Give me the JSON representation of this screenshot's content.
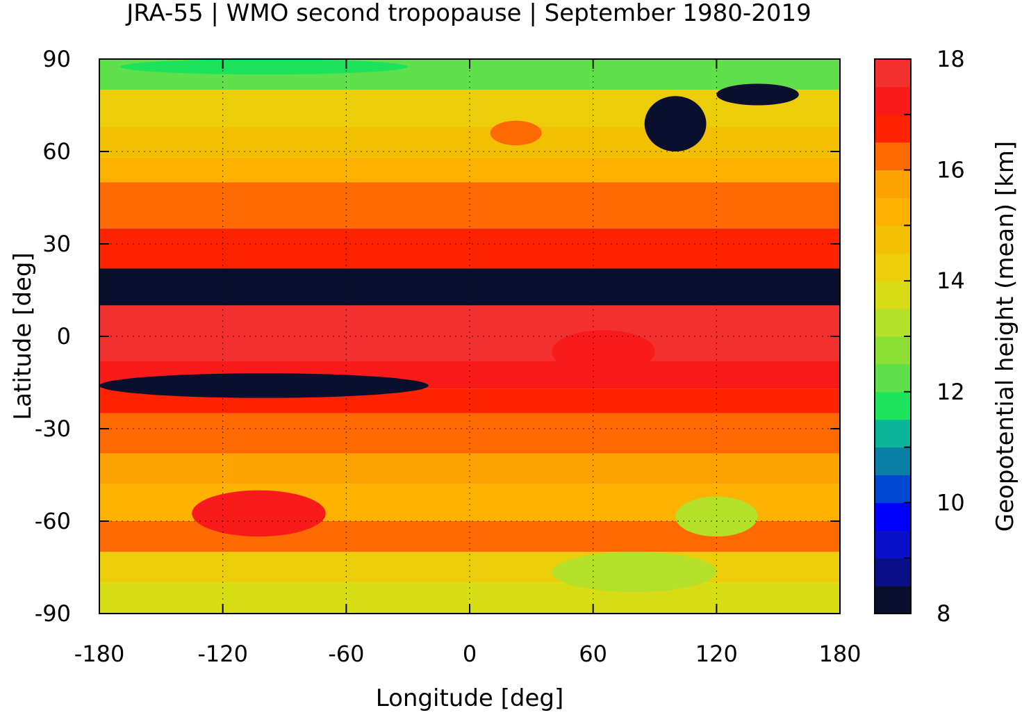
{
  "chart_data": {
    "type": "heatmap",
    "title": "JRA-55 | WMO second tropopause | September 1980-2019",
    "xlabel": "Longitude [deg]",
    "ylabel": "Latitude [deg]",
    "xlim": [
      -180,
      180
    ],
    "ylim": [
      -90,
      90
    ],
    "xticks": [
      -180,
      -120,
      -60,
      0,
      60,
      120,
      180
    ],
    "yticks": [
      90,
      60,
      30,
      0,
      -30,
      -60,
      -90
    ],
    "grid": true,
    "colorbar": {
      "label": "Geopotential height (mean) [km]",
      "range": [
        8,
        18
      ],
      "ticks": [
        18,
        16,
        14,
        12,
        10,
        8
      ],
      "step": 0.5,
      "colors": [
        "#0b0f2e",
        "#0a0f88",
        "#0a10c8",
        "#0000ff",
        "#0047d2",
        "#0a7fa6",
        "#0ab59a",
        "#1ce35b",
        "#5fe04a",
        "#8ce035",
        "#b5e02a",
        "#d8dc14",
        "#eccd0a",
        "#f3bf02",
        "#fdb100",
        "#fda203",
        "#fd6a03",
        "#fd2200",
        "#f91a1a",
        "#f23030",
        "#f58080",
        "#ffcccc"
      ]
    },
    "bands": [
      {
        "lat": [
          80,
          90
        ],
        "value": 12.0
      },
      {
        "lat": [
          68,
          80
        ],
        "value": 14.0
      },
      {
        "lat": [
          58,
          68
        ],
        "value": 14.8
      },
      {
        "lat": [
          50,
          58
        ],
        "value": 15.3
      },
      {
        "lat": [
          35,
          50
        ],
        "value": 16.2
      },
      {
        "lat": [
          22,
          35
        ],
        "value": 16.8
      },
      {
        "lat": [
          10,
          22
        ],
        "value": 8.2
      },
      {
        "lat": [
          -8,
          10
        ],
        "value": 17.8
      },
      {
        "lat": [
          -17,
          -8
        ],
        "value": 17.3
      },
      {
        "lat": [
          -25,
          -17
        ],
        "value": 16.8
      },
      {
        "lat": [
          -38,
          -25
        ],
        "value": 16.2
      },
      {
        "lat": [
          -48,
          -38
        ],
        "value": 15.7
      },
      {
        "lat": [
          -60,
          -48
        ],
        "value": 15.2
      },
      {
        "lat": [
          -70,
          -60
        ],
        "value": 16.0
      },
      {
        "lat": [
          -80,
          -70
        ],
        "value": 14.3
      },
      {
        "lat": [
          -90,
          -80
        ],
        "value": 13.8
      }
    ],
    "features": [
      {
        "lon": [
          -135,
          -70
        ],
        "lat": [
          -65,
          -50
        ],
        "value": 17.3
      },
      {
        "lon": [
          -180,
          -20
        ],
        "lat": [
          -20,
          -12
        ],
        "value": 8.2
      },
      {
        "lon": [
          40,
          90
        ],
        "lat": [
          -12,
          2
        ],
        "value": 17.3
      },
      {
        "lon": [
          85,
          115
        ],
        "lat": [
          60,
          78
        ],
        "value": 8.2
      },
      {
        "lon": [
          10,
          35
        ],
        "lat": [
          62,
          70
        ],
        "value": 16.2
      },
      {
        "lon": [
          40,
          120
        ],
        "lat": [
          -83,
          -70
        ],
        "value": 13.2
      },
      {
        "lon": [
          100,
          140
        ],
        "lat": [
          -65,
          -52
        ],
        "value": 13.0
      },
      {
        "lon": [
          -170,
          -30
        ],
        "lat": [
          85,
          90
        ],
        "value": 11.5
      },
      {
        "lon": [
          120,
          160
        ],
        "lat": [
          75,
          82
        ],
        "value": 8.2
      }
    ]
  }
}
